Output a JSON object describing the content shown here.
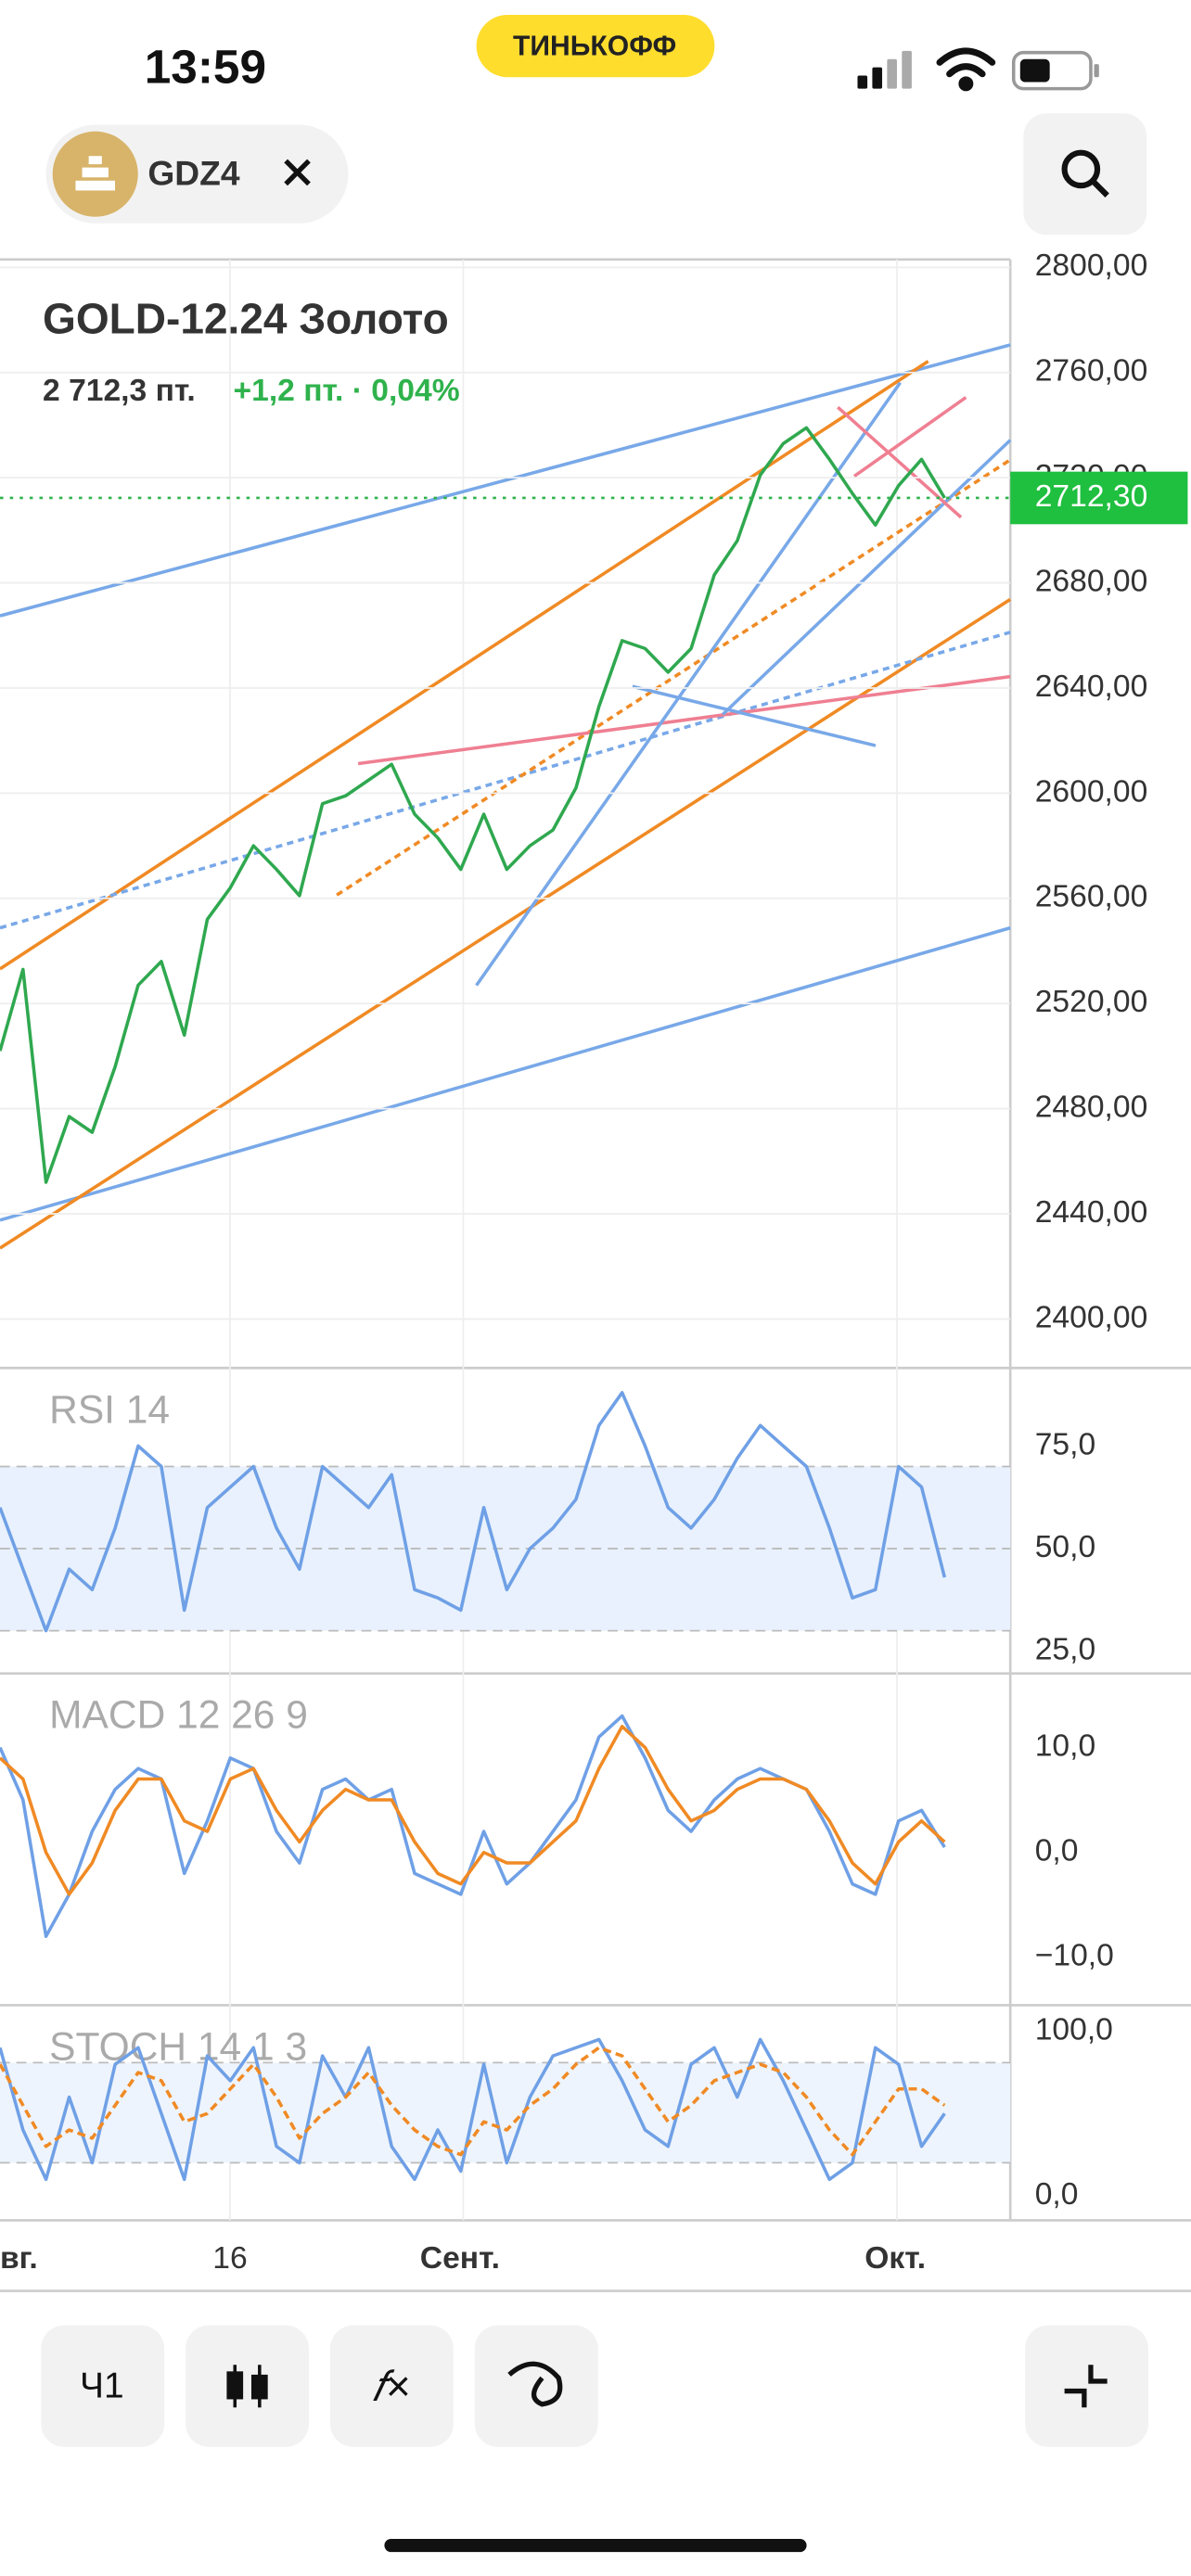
{
  "status_bar": {
    "time": "13:59",
    "carrier": "ТИНЬКОФФ"
  },
  "header": {
    "ticker": "GDZ4"
  },
  "time_axis": {
    "labels": [
      "вг.",
      "16",
      "Сент.",
      "Окт."
    ]
  },
  "toolbar": {
    "interval": "Ч1"
  },
  "chart_data": [
    {
      "type": "line",
      "title": "GOLD-12.24 Золото",
      "last_price": "2 712,3 пт.",
      "change": "+1,2 пт. · 0,04%",
      "current_price": {
        "value": 2712.3,
        "label": "2712,30"
      },
      "ylim": [
        2382,
        2803
      ],
      "yticks": [
        {
          "value": 2400,
          "label": "2400,00"
        },
        {
          "value": 2440,
          "label": "2440,00"
        },
        {
          "value": 2480,
          "label": "2480,00"
        },
        {
          "value": 2520,
          "label": "2520,00"
        },
        {
          "value": 2560,
          "label": "2560,00"
        },
        {
          "value": 2600,
          "label": "2600,00"
        },
        {
          "value": 2640,
          "label": "2640,00"
        },
        {
          "value": 2680,
          "label": "2680,00"
        },
        {
          "value": 2720,
          "label": "2720,00"
        },
        {
          "value": 2760,
          "label": "2760,00"
        },
        {
          "value": 2800,
          "label": "2800,00"
        }
      ],
      "series": [
        {
          "color": "#2fa84f",
          "values": [
            2502,
            2533,
            2452,
            2477,
            2471,
            2496,
            2527,
            2536,
            2508,
            2552,
            2564,
            2580,
            2571,
            2561,
            2596,
            2599,
            2605,
            2611,
            2592,
            2583,
            2571,
            2592,
            2571,
            2580,
            2586,
            2602,
            2633,
            2658,
            2655,
            2646,
            2655,
            2683,
            2696,
            2721,
            2733,
            2739,
            2727,
            2714,
            2702,
            2717,
            2727,
            2712.3
          ]
        }
      ]
    },
    {
      "type": "line",
      "title": "RSI 14",
      "ylim": [
        20,
        93.6
      ],
      "yticks": [
        {
          "value": 25,
          "label": "25,0"
        },
        {
          "value": 50,
          "label": "50,0"
        },
        {
          "value": 75,
          "label": "75,0"
        }
      ],
      "series": [
        {
          "color": "#6fa0e6",
          "values": [
            60,
            45,
            30,
            45,
            40,
            55,
            75,
            70,
            35,
            60,
            65,
            70,
            55,
            45,
            70,
            65,
            60,
            68,
            40,
            38,
            35,
            60,
            40,
            50,
            55,
            62,
            80,
            88,
            75,
            60,
            55,
            62,
            72,
            80,
            75,
            70,
            55,
            38,
            40,
            70,
            65,
            43
          ]
        }
      ]
    },
    {
      "type": "line",
      "title": "MACD 12 26 9",
      "ylim": [
        -14.4,
        16.9
      ],
      "yticks": [
        {
          "value": -10,
          "label": "−10,0"
        },
        {
          "value": 0,
          "label": "0,0"
        },
        {
          "value": 10,
          "label": "10,0"
        }
      ],
      "series": [
        {
          "color": "#6fa0e6",
          "values": [
            10,
            5,
            -8,
            -4,
            2,
            6,
            8,
            7,
            -2,
            3,
            9,
            8,
            2,
            -1,
            6,
            7,
            5,
            6,
            -2,
            -3,
            -4,
            2,
            -3,
            -1,
            2,
            5,
            11,
            13,
            9,
            4,
            2,
            5,
            7,
            8,
            7,
            6,
            2,
            -3,
            -4,
            3,
            4,
            0.5
          ]
        },
        {
          "color": "#f08a24",
          "values": [
            9,
            7,
            0,
            -4,
            -1,
            4,
            7,
            7,
            3,
            2,
            7,
            8,
            4,
            1,
            4,
            6,
            5,
            5,
            1,
            -2,
            -3,
            0,
            -1,
            -1,
            1,
            3,
            8,
            12,
            10,
            6,
            3,
            4,
            6,
            7,
            7,
            6,
            3,
            -1,
            -3,
            1,
            3,
            1
          ]
        }
      ]
    },
    {
      "type": "line",
      "title": "STOCH 14 1 3",
      "ylim": [
        -14.9,
        114.9
      ],
      "yticks": [
        {
          "value": 0,
          "label": "0,0"
        },
        {
          "value": 100,
          "label": "100,0"
        }
      ],
      "series": [
        {
          "color": "#6fa0e6",
          "values": [
            90,
            40,
            10,
            60,
            20,
            80,
            90,
            50,
            10,
            85,
            70,
            90,
            30,
            20,
            85,
            60,
            90,
            30,
            10,
            40,
            15,
            80,
            20,
            60,
            85,
            90,
            95,
            70,
            40,
            30,
            80,
            90,
            60,
            95,
            70,
            40,
            10,
            20,
            90,
            80,
            30,
            50
          ]
        },
        {
          "color": "#f08a24",
          "values": [
            80,
            55,
            30,
            40,
            35,
            55,
            75,
            70,
            45,
            50,
            65,
            80,
            60,
            35,
            50,
            60,
            75,
            55,
            40,
            30,
            25,
            45,
            40,
            55,
            65,
            80,
            90,
            85,
            65,
            45,
            55,
            70,
            75,
            80,
            75,
            60,
            40,
            25,
            45,
            65,
            65,
            55
          ]
        }
      ]
    }
  ]
}
